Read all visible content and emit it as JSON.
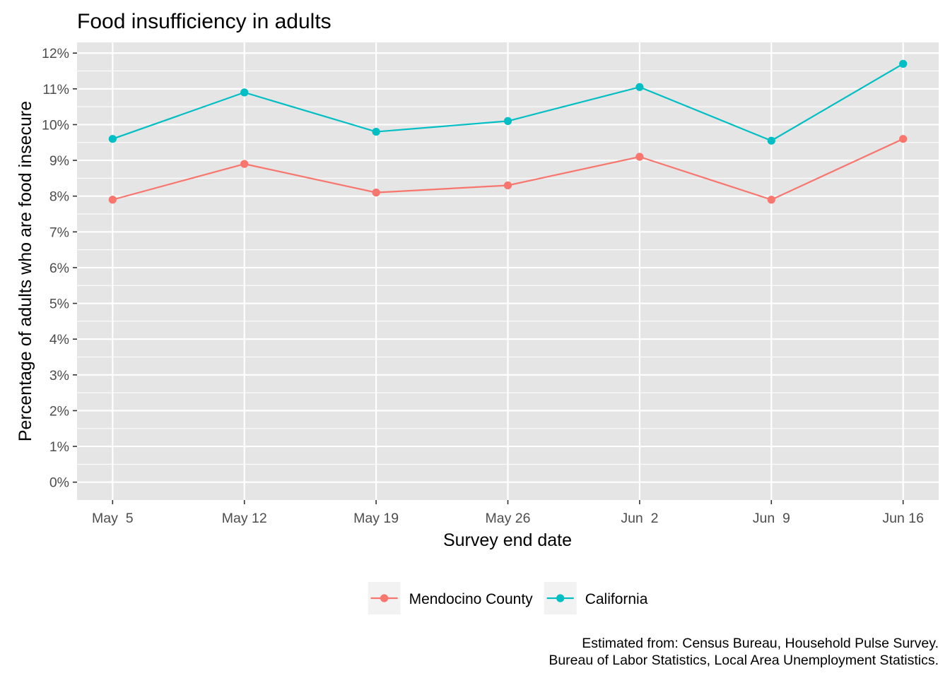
{
  "chart_data": {
    "type": "line",
    "title": "Food insufficiency in adults",
    "xlabel": "Survey end date",
    "ylabel": "Percentage of adults who are food insecure",
    "categories": [
      "May  5",
      "May 12",
      "May 19",
      "May 26",
      "Jun  2",
      "Jun  9",
      "Jun 16"
    ],
    "x": [
      "2020-05-05",
      "2020-05-12",
      "2020-05-19",
      "2020-05-26",
      "2020-06-02",
      "2020-06-09",
      "2020-06-16"
    ],
    "series": [
      {
        "name": "Mendocino County",
        "color": "#F8766D",
        "values": [
          7.9,
          8.9,
          8.1,
          8.3,
          9.1,
          7.9,
          9.6
        ]
      },
      {
        "name": "California",
        "color": "#00BFC4",
        "values": [
          9.6,
          10.9,
          9.8,
          10.1,
          11.05,
          9.55,
          11.7
        ]
      }
    ],
    "ylim": [
      -0.5,
      12.3
    ],
    "yticks": [
      0,
      1,
      2,
      3,
      4,
      5,
      6,
      7,
      8,
      9,
      10,
      11,
      12
    ],
    "ytick_labels": [
      "0%",
      "1%",
      "2%",
      "3%",
      "4%",
      "5%",
      "6%",
      "7%",
      "8%",
      "9%",
      "10%",
      "11%",
      "12%"
    ],
    "grid": true,
    "legend": "bottom",
    "caption": [
      "Estimated from: Census Bureau, Household Pulse Survey.",
      "Bureau of Labor Statistics, Local Area Unemployment Statistics."
    ],
    "panel_background": "#E5E5E5",
    "grid_color": "#FFFFFF"
  }
}
